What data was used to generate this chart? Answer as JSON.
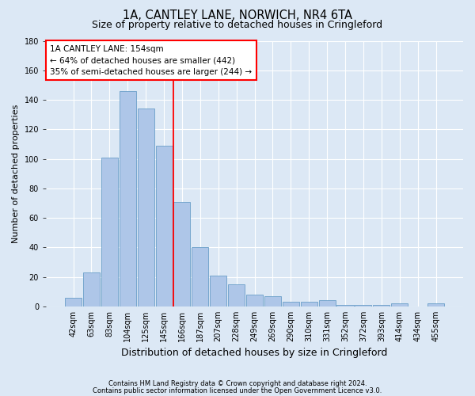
{
  "title": "1A, CANTLEY LANE, NORWICH, NR4 6TA",
  "subtitle": "Size of property relative to detached houses in Cringleford",
  "xlabel": "Distribution of detached houses by size in Cringleford",
  "ylabel": "Number of detached properties",
  "categories": [
    "42sqm",
    "63sqm",
    "83sqm",
    "104sqm",
    "125sqm",
    "145sqm",
    "166sqm",
    "187sqm",
    "207sqm",
    "228sqm",
    "249sqm",
    "269sqm",
    "290sqm",
    "310sqm",
    "331sqm",
    "352sqm",
    "372sqm",
    "393sqm",
    "414sqm",
    "434sqm",
    "455sqm"
  ],
  "values": [
    6,
    23,
    101,
    146,
    134,
    109,
    71,
    40,
    21,
    15,
    8,
    7,
    3,
    3,
    4,
    1,
    1,
    1,
    2,
    0,
    2
  ],
  "bar_color": "#aec6e8",
  "bar_edge_color": "#6a9fc8",
  "ylim": [
    0,
    180
  ],
  "yticks": [
    0,
    20,
    40,
    60,
    80,
    100,
    120,
    140,
    160,
    180
  ],
  "annotation_box_text": "1A CANTLEY LANE: 154sqm\n← 64% of detached houses are smaller (442)\n35% of semi-detached houses are larger (244) →",
  "bg_color": "#dce8f5",
  "plot_bg_color": "#dce8f5",
  "footer_line1": "Contains HM Land Registry data © Crown copyright and database right 2024.",
  "footer_line2": "Contains public sector information licensed under the Open Government Licence v3.0.",
  "title_fontsize": 10.5,
  "subtitle_fontsize": 9,
  "tick_fontsize": 7,
  "ylabel_fontsize": 8,
  "xlabel_fontsize": 9,
  "annot_fontsize": 7.5,
  "footer_fontsize": 6
}
